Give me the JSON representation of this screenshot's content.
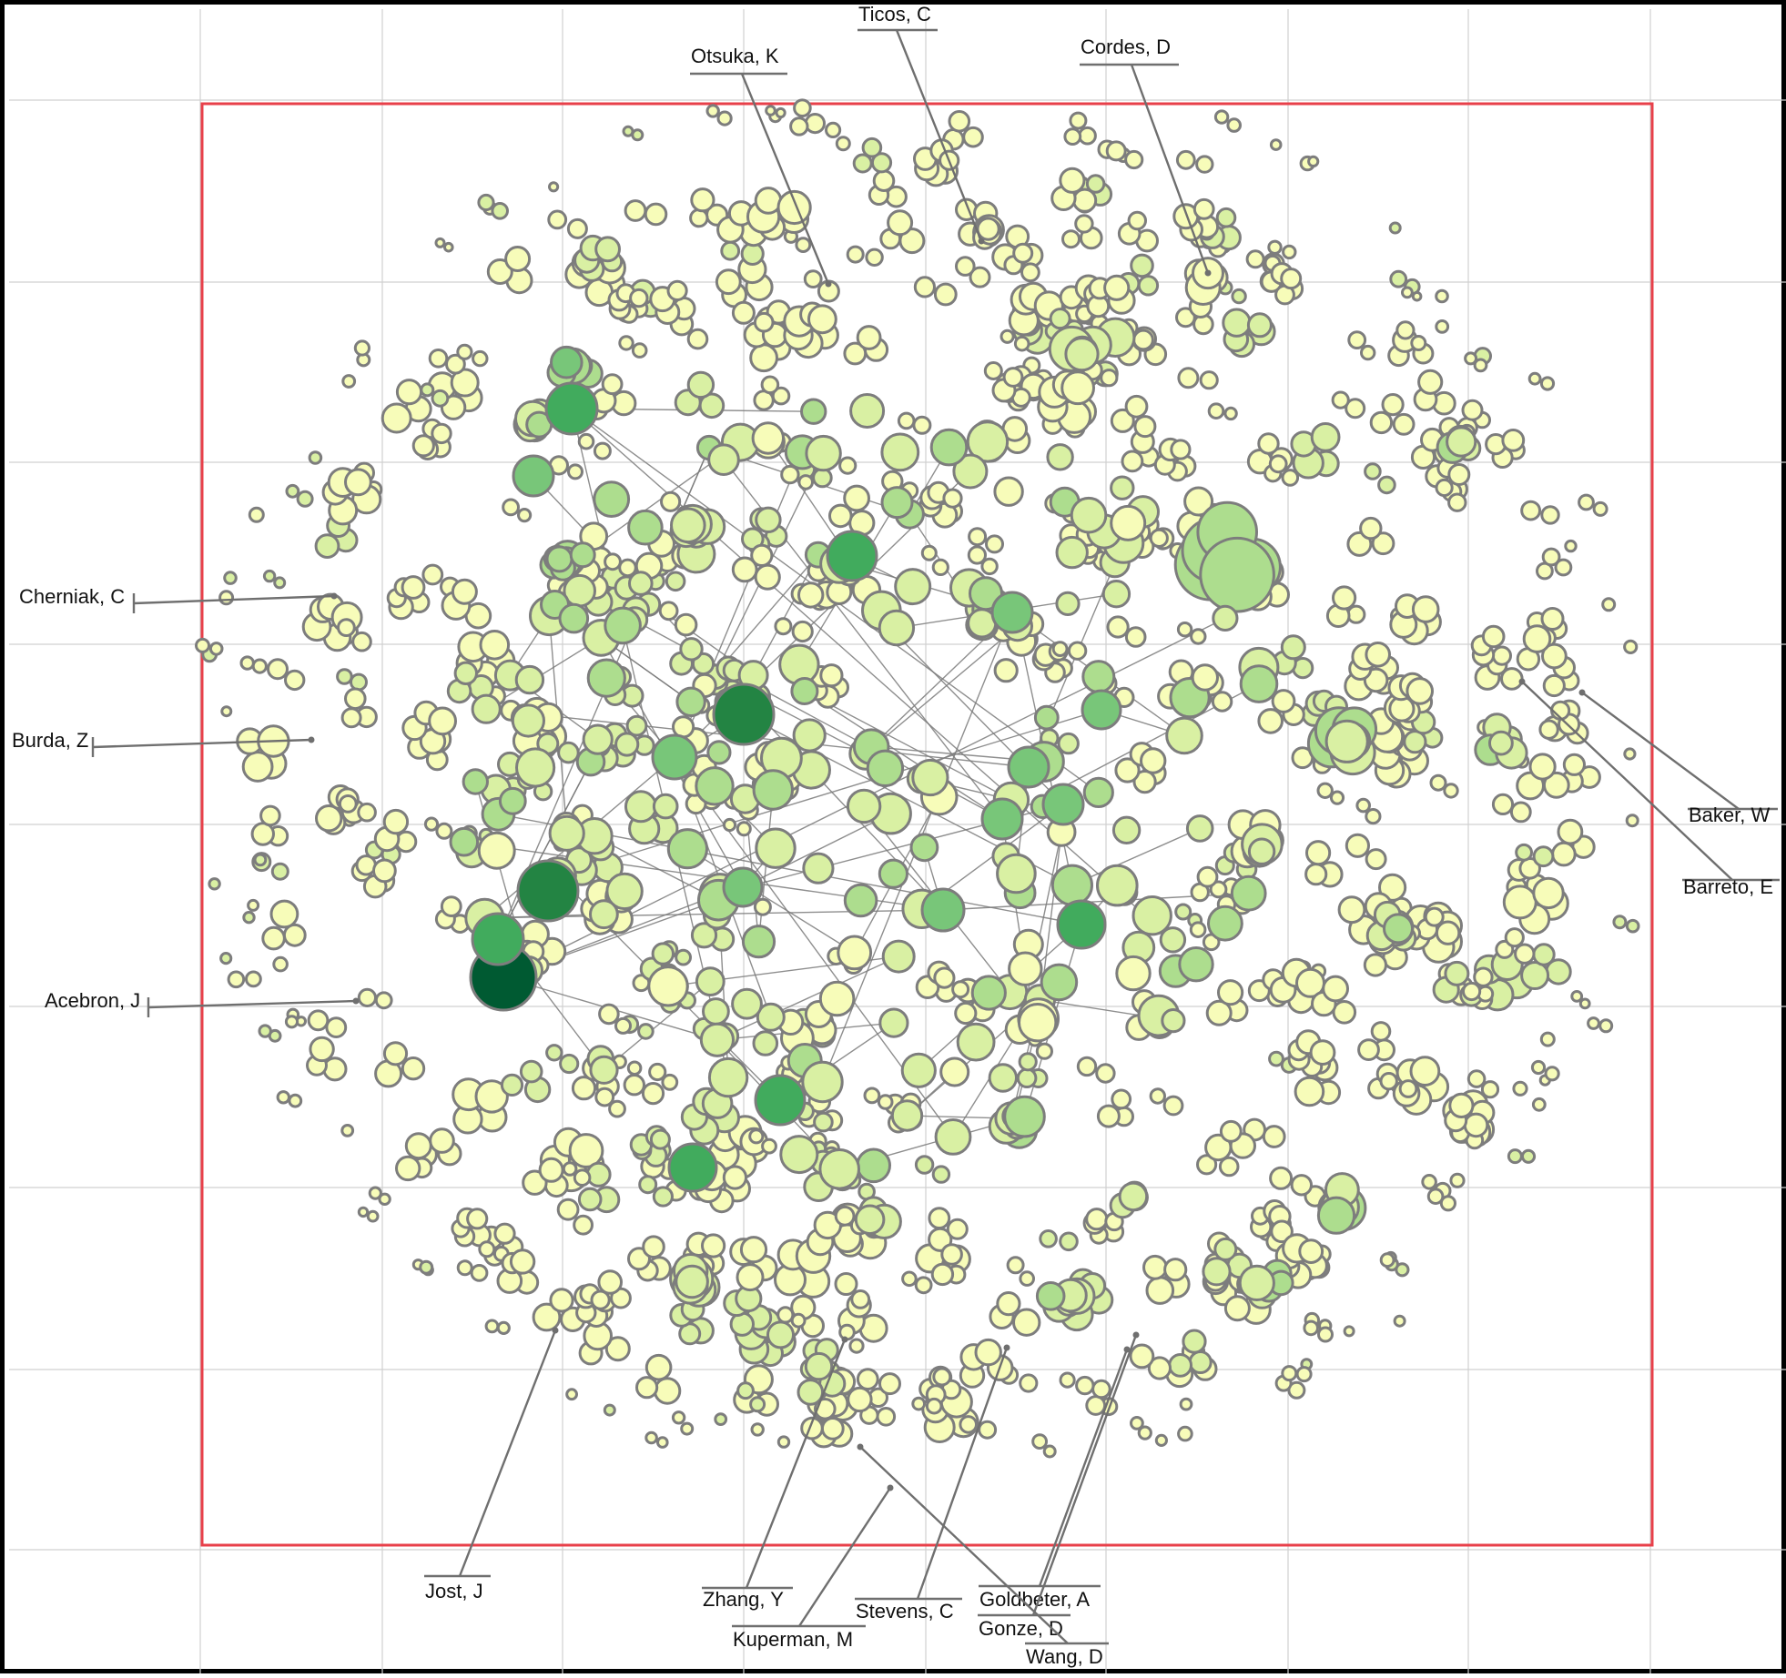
{
  "colors": {
    "background": "#ffffff",
    "frame": "#000000",
    "viewport_box": "#e8404a",
    "gridline": "#d0d0d0",
    "node_stroke": "#7d7d7d",
    "edge": "#7a7a7a",
    "leader": "#6f6f6f",
    "node_scale": [
      "#f7fcb9",
      "#d9f0a3",
      "#addd8e",
      "#78c679",
      "#41ab5d",
      "#238443",
      "#005a32"
    ]
  },
  "labels": [
    {
      "id": "ticos",
      "text": "Ticos, C"
    },
    {
      "id": "otsuka",
      "text": "Otsuka, K"
    },
    {
      "id": "cordes",
      "text": "Cordes, D"
    },
    {
      "id": "cherniak",
      "text": "Cherniak, C"
    },
    {
      "id": "burda",
      "text": "Burda, Z"
    },
    {
      "id": "acebron",
      "text": "Acebron, J"
    },
    {
      "id": "baker",
      "text": "Baker, W"
    },
    {
      "id": "barreto",
      "text": "Barreto, E"
    },
    {
      "id": "jost",
      "text": "Jost, J"
    },
    {
      "id": "zhang",
      "text": "Zhang, Y"
    },
    {
      "id": "kuperman",
      "text": "Kuperman, M"
    },
    {
      "id": "stevens",
      "text": "Stevens, C"
    },
    {
      "id": "goldbeter",
      "text": "Goldbeter, A"
    },
    {
      "id": "gonze",
      "text": "Gonze, D"
    },
    {
      "id": "wang",
      "text": "Wang, D"
    }
  ]
}
